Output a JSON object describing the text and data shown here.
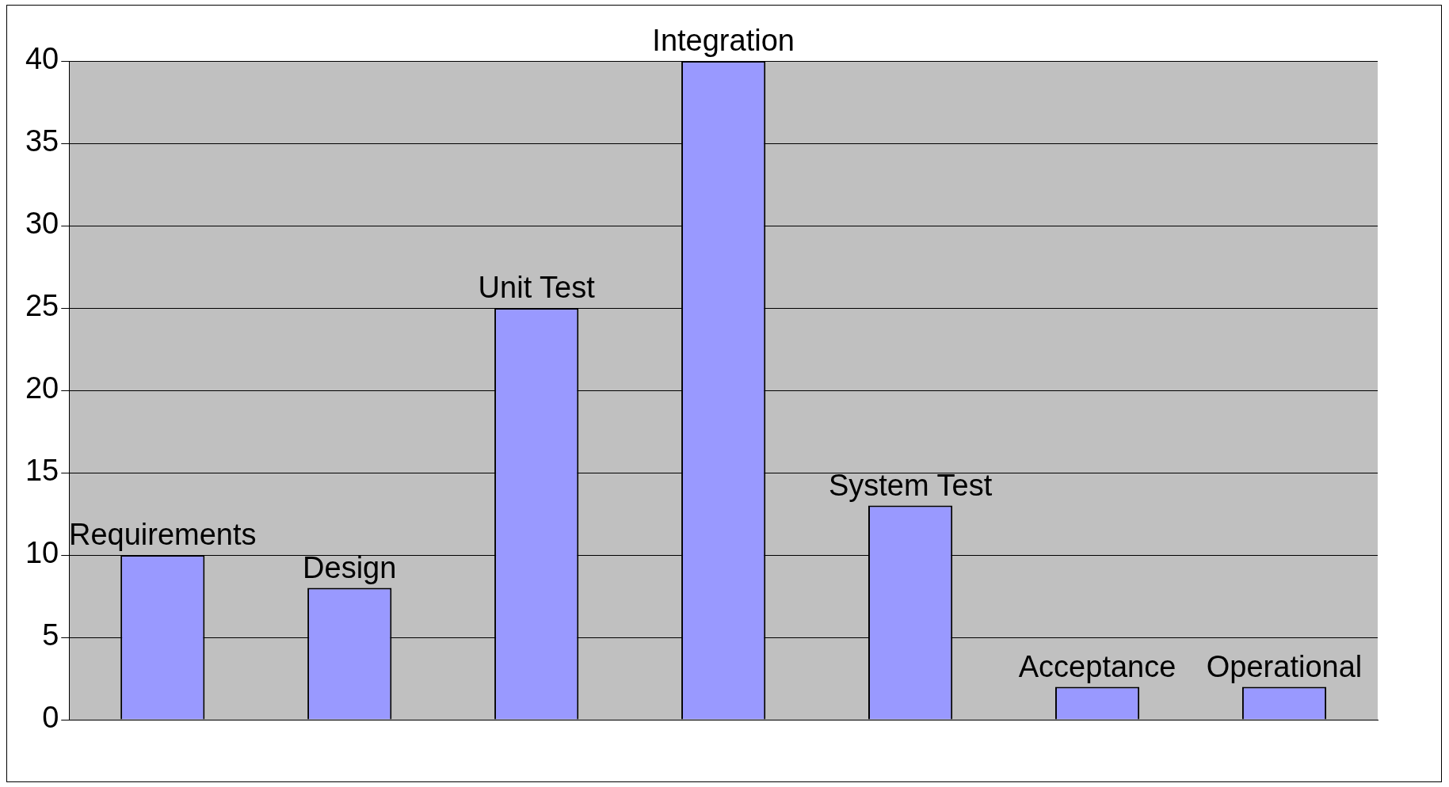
{
  "chart_data": {
    "type": "bar",
    "categories": [
      "Requirements",
      "Design",
      "Unit Test",
      "Integration",
      "System Test",
      "Acceptance",
      "Operational"
    ],
    "values": [
      10,
      8,
      25,
      40,
      13,
      2,
      2
    ],
    "color": "#9999ff",
    "ylim": [
      0,
      40
    ],
    "yticks": [
      0,
      5,
      10,
      15,
      20,
      25,
      30,
      35,
      40
    ],
    "grid": "y",
    "legend": false
  }
}
